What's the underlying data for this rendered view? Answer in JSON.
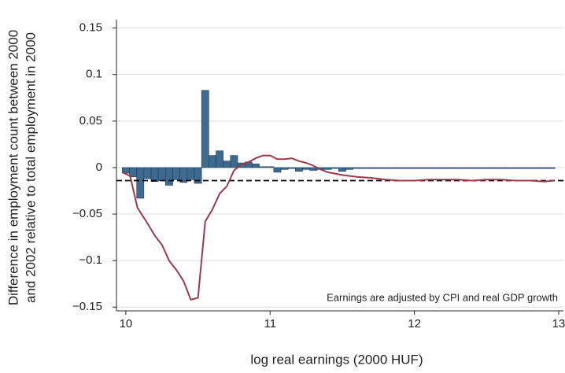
{
  "chart_data": {
    "type": "histogram",
    "x_label": "log real earnings (2000 HUF)",
    "y_label": [
      "Difference in employment count between 2000",
      "and 2002 relative to total employment in 2000"
    ],
    "annotation": "Earnings are adjusted by CPI and real GDP growth",
    "xlim": [
      9.935,
      13.033
    ],
    "ylim": [
      -0.154,
      0.159
    ],
    "xticks": [
      10,
      11,
      12,
      13
    ],
    "yticks": [
      {
        "value": -0.15,
        "label": "−0.15"
      },
      {
        "value": -0.1,
        "label": "−0.1"
      },
      {
        "value": -0.05,
        "label": "−0.05"
      },
      0,
      0.05,
      0.1,
      0.15
    ],
    "grid": true,
    "color": "#3f6a8f",
    "bins": [
      9.975,
      10.025,
      10.075,
      10.125,
      10.175,
      10.225,
      10.275,
      10.325,
      10.375,
      10.425,
      10.475,
      10.525,
      10.575,
      10.625,
      10.675,
      10.725,
      10.775,
      10.825,
      10.875,
      10.925,
      10.975,
      11.025,
      11.075,
      11.125,
      11.175,
      11.225,
      11.275,
      11.325,
      11.375,
      11.425,
      11.475,
      11.525,
      11.575,
      11.625,
      11.675,
      11.725,
      11.775,
      11.825,
      11.875,
      11.925,
      11.975,
      12.025,
      12.075,
      12.125,
      12.175,
      12.225,
      12.275,
      12.325,
      12.375,
      12.425,
      12.475,
      12.525,
      12.575,
      12.625,
      12.675,
      12.725,
      12.775,
      12.825,
      12.875,
      12.925,
      12.975
    ],
    "values": [
      -0.006,
      -0.01,
      -0.033,
      -0.012,
      -0.015,
      -0.014,
      -0.019,
      -0.013,
      -0.016,
      -0.013,
      -0.017,
      0.083,
      0.013,
      0.018,
      0.007,
      0.013,
      0.005,
      0.006,
      0.004,
      0.001,
      0.001,
      -0.005,
      -0.002,
      -0.001,
      -0.004,
      -0.002,
      -0.003,
      -0.002,
      -0.002,
      -0.001,
      -0.004,
      -0.002,
      -0.001,
      -0.001,
      -0.001,
      -0.001,
      -0.001,
      -0.001,
      -0.001,
      -0.001,
      -0.001,
      -0.001,
      -0.001,
      -0.001,
      -0.001,
      -0.001,
      -0.001,
      -0.001,
      -0.001,
      -0.001,
      -0.001,
      -0.001,
      -0.001,
      -0.001,
      -0.001,
      -0.001,
      -0.001,
      -0.001,
      -0.001,
      -0.001
    ],
    "line": {
      "color": "#9b3a4a",
      "x": [
        9.975,
        10.03,
        10.08,
        10.15,
        10.2,
        10.25,
        10.3,
        10.35,
        10.4,
        10.45,
        10.5,
        10.55,
        10.6,
        10.65,
        10.7,
        10.75,
        10.8,
        10.85,
        10.9,
        10.95,
        11.0,
        11.05,
        11.1,
        11.15,
        11.2,
        11.25,
        11.3,
        11.35,
        11.4,
        11.5,
        11.6,
        11.7,
        11.8,
        11.9,
        12.0,
        12.1,
        12.2,
        12.3,
        12.4,
        12.5,
        12.6,
        12.7,
        12.8,
        12.9,
        12.97
      ],
      "y": [
        -0.005,
        -0.009,
        -0.043,
        -0.06,
        -0.073,
        -0.083,
        -0.1,
        -0.11,
        -0.122,
        -0.142,
        -0.14,
        -0.058,
        -0.045,
        -0.028,
        -0.02,
        -0.003,
        0.003,
        0.006,
        0.01,
        0.013,
        0.013,
        0.009,
        0.009,
        0.01,
        0.007,
        0.005,
        0.002,
        -0.002,
        -0.005,
        -0.008,
        -0.01,
        -0.011,
        -0.013,
        -0.014,
        -0.014,
        -0.013,
        -0.013,
        -0.013,
        -0.014,
        -0.013,
        -0.013,
        -0.014,
        -0.014,
        -0.015,
        -0.014
      ]
    },
    "reference_line": {
      "value": -0.014
    }
  }
}
